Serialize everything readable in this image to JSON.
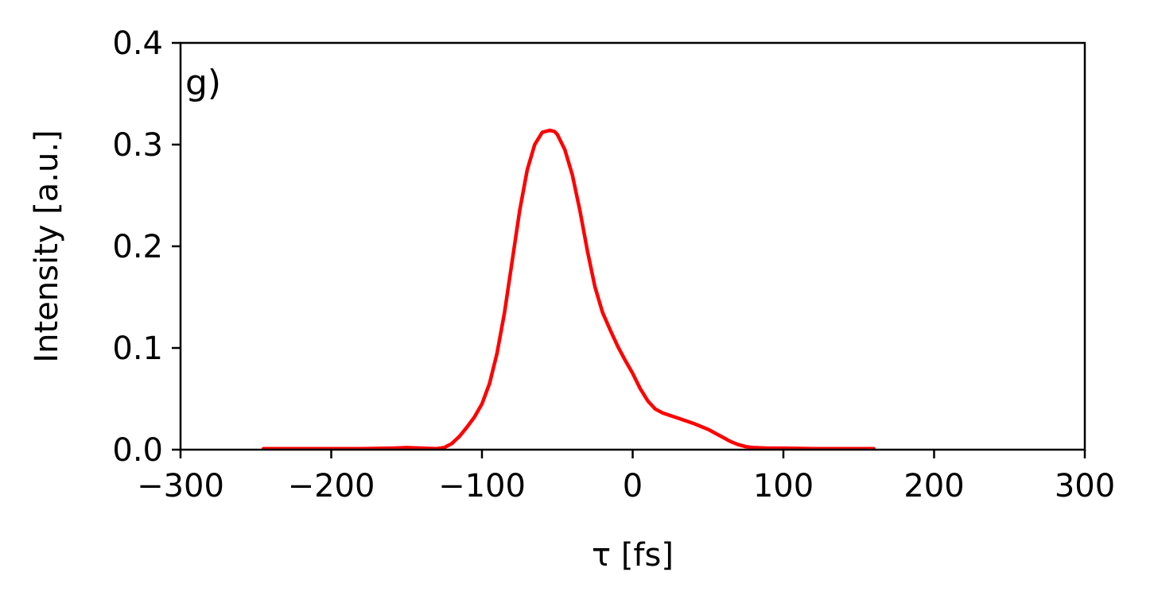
{
  "chart_data": {
    "type": "line",
    "panel_label": "g)",
    "xlabel": "τ [fs]",
    "ylabel": "Intensity [a.u.]",
    "xlim": [
      -300,
      300
    ],
    "ylim": [
      0,
      0.4
    ],
    "xticks": [
      -300,
      -200,
      -100,
      0,
      100,
      200,
      300
    ],
    "xtick_labels": [
      "−300",
      "−200",
      "−100",
      "0",
      "100",
      "200",
      "300"
    ],
    "yticks": [
      0,
      0.1,
      0.2,
      0.3,
      0.4
    ],
    "ytick_labels": [
      "0.0",
      "0.1",
      "0.2",
      "0.3",
      "0.4"
    ],
    "grid": false,
    "series": [
      {
        "color": "#ff0000",
        "x": [
          -245,
          -220,
          -200,
          -180,
          -160,
          -150,
          -140,
          -130,
          -125,
          -120,
          -115,
          -110,
          -105,
          -100,
          -95,
          -90,
          -85,
          -80,
          -75,
          -70,
          -65,
          -60,
          -55,
          -52,
          -50,
          -45,
          -40,
          -35,
          -30,
          -25,
          -20,
          -15,
          -10,
          -5,
          0,
          5,
          10,
          15,
          20,
          30,
          40,
          50,
          55,
          60,
          65,
          70,
          75,
          80,
          90,
          100,
          120,
          140,
          160
        ],
        "y": [
          0.001,
          0.001,
          0.001,
          0.001,
          0.0015,
          0.002,
          0.0015,
          0.001,
          0.002,
          0.006,
          0.013,
          0.022,
          0.032,
          0.045,
          0.065,
          0.095,
          0.135,
          0.185,
          0.235,
          0.275,
          0.3,
          0.312,
          0.314,
          0.313,
          0.31,
          0.295,
          0.27,
          0.235,
          0.195,
          0.16,
          0.135,
          0.118,
          0.102,
          0.088,
          0.075,
          0.06,
          0.048,
          0.04,
          0.036,
          0.031,
          0.026,
          0.02,
          0.016,
          0.012,
          0.008,
          0.005,
          0.003,
          0.002,
          0.0015,
          0.0015,
          0.001,
          0.001,
          0.001
        ]
      }
    ]
  }
}
